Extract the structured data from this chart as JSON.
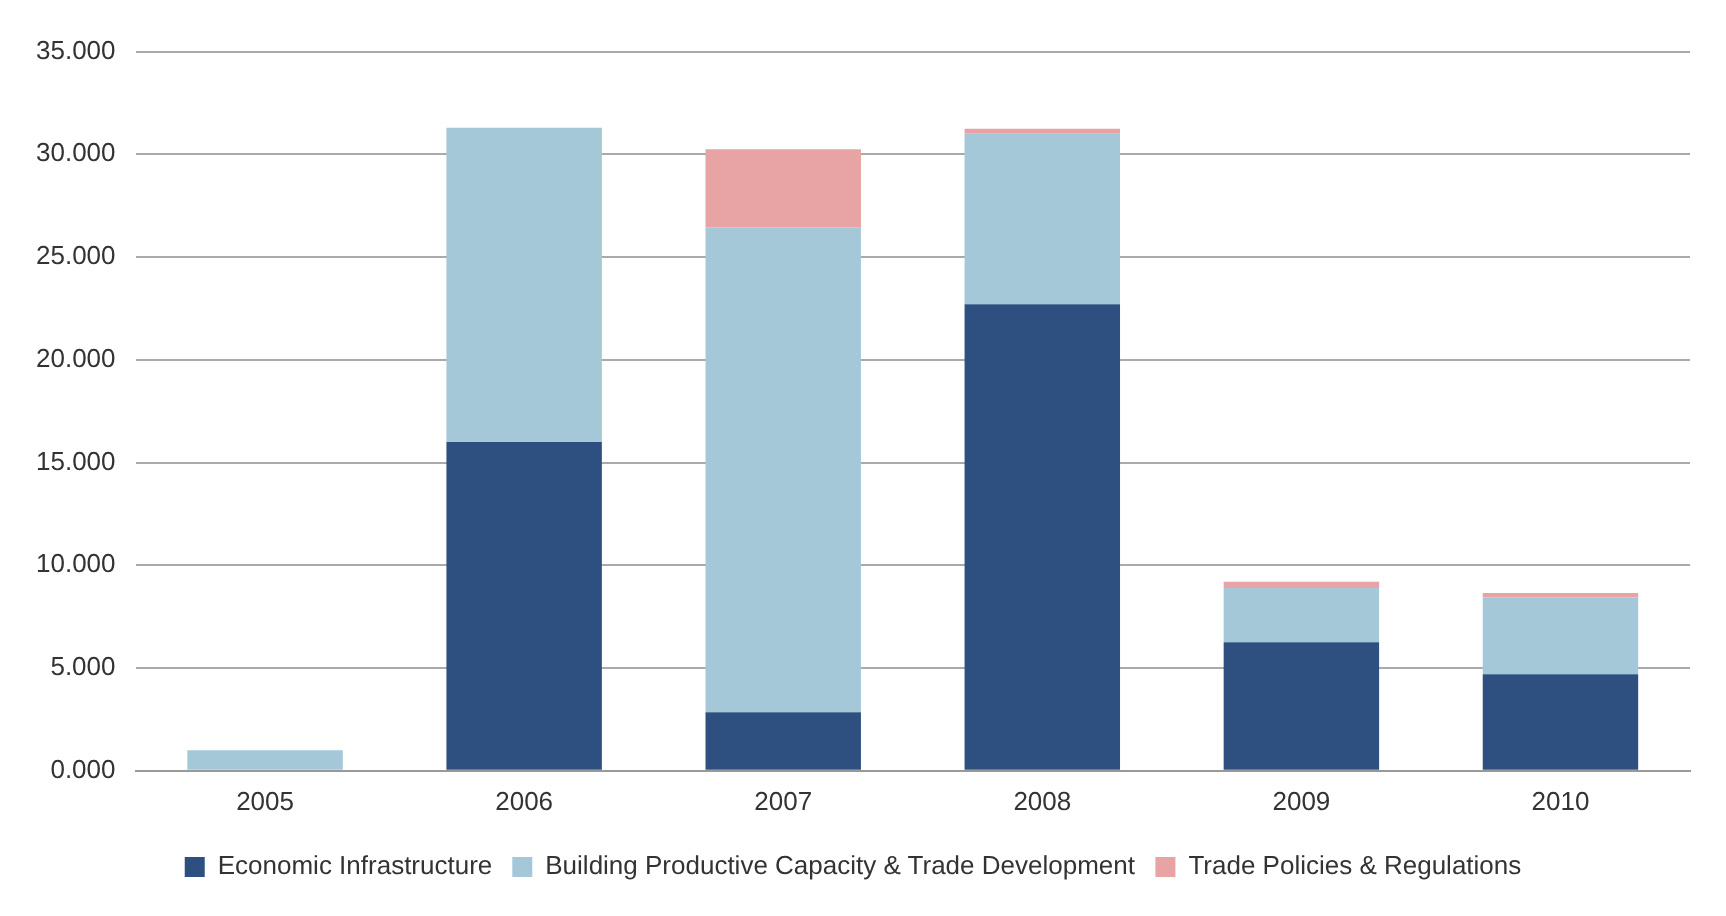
{
  "chart_data": {
    "type": "bar",
    "stacked": true,
    "categories": [
      "2005",
      "2006",
      "2007",
      "2008",
      "2009",
      "2010"
    ],
    "series": [
      {
        "name": "Economic Infrastructure",
        "color": "#2e5080",
        "values": [
          0,
          16.0,
          2.85,
          22.7,
          6.25,
          4.7
        ]
      },
      {
        "name": "Building Productive Capacity & Trade Development",
        "color": "#a4c8d8",
        "values": [
          1.0,
          15.3,
          23.6,
          8.3,
          2.65,
          3.75
        ]
      },
      {
        "name": "Trade Policies & Regulations",
        "color": "#e8a4a4",
        "values": [
          0,
          0,
          3.8,
          0.25,
          0.3,
          0.2
        ]
      }
    ],
    "ylim": [
      0,
      35
    ],
    "yticks": [
      {
        "value": 0,
        "label": "0.000"
      },
      {
        "value": 5,
        "label": "5.000"
      },
      {
        "value": 10,
        "label": "10.000"
      },
      {
        "value": 15,
        "label": "15.000"
      },
      {
        "value": 20,
        "label": "20.000"
      },
      {
        "value": 25,
        "label": "25.000"
      },
      {
        "value": 30,
        "label": "30.000"
      },
      {
        "value": 35,
        "label": "35.000"
      }
    ],
    "grid": "y",
    "legend": "bottom"
  }
}
